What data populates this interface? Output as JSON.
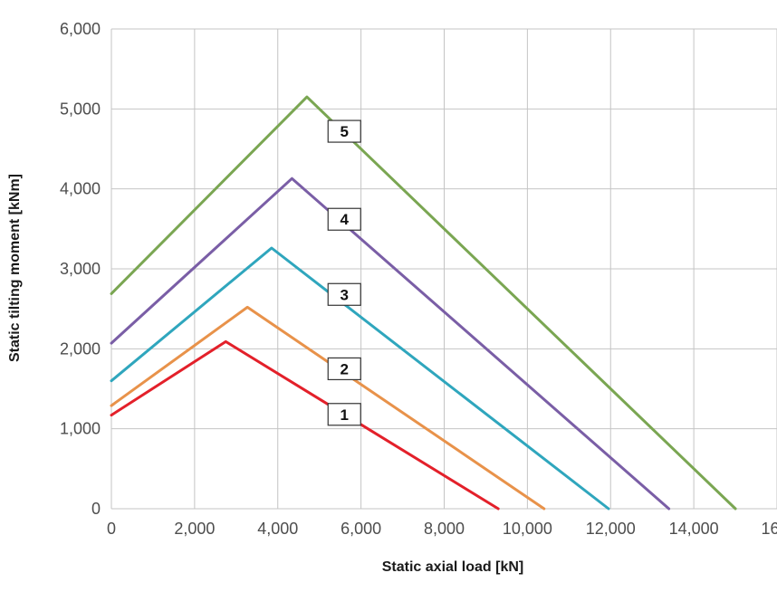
{
  "chart_data": {
    "type": "line",
    "title": "",
    "xlabel": "Static axial load [kN]",
    "ylabel": "Static tilting moment [kNm]",
    "xlim": [
      0,
      16000
    ],
    "ylim": [
      0,
      6000
    ],
    "x_ticks": [
      "0",
      "2,000",
      "4,000",
      "6,000",
      "8,000",
      "10,000",
      "12,000",
      "14,000",
      "16,0"
    ],
    "y_ticks": [
      "0",
      "1,000",
      "2,000",
      "3,000",
      "4,000",
      "5,000",
      "6,000"
    ],
    "grid": true,
    "series": [
      {
        "name": "1",
        "color": "#e3202a",
        "x": [
          0,
          2750,
          9300
        ],
        "y": [
          1170,
          2090,
          0
        ]
      },
      {
        "name": "2",
        "color": "#e8924a",
        "x": [
          0,
          3270,
          10400
        ],
        "y": [
          1290,
          2520,
          0
        ]
      },
      {
        "name": "3",
        "color": "#2fa6bd",
        "x": [
          0,
          3850,
          11950
        ],
        "y": [
          1600,
          3260,
          0
        ]
      },
      {
        "name": "4",
        "color": "#7a5ea6",
        "x": [
          0,
          4340,
          13400
        ],
        "y": [
          2070,
          4130,
          0
        ]
      },
      {
        "name": "5",
        "color": "#7aa652",
        "x": [
          0,
          4700,
          15000
        ],
        "y": [
          2690,
          5150,
          0
        ]
      }
    ]
  }
}
